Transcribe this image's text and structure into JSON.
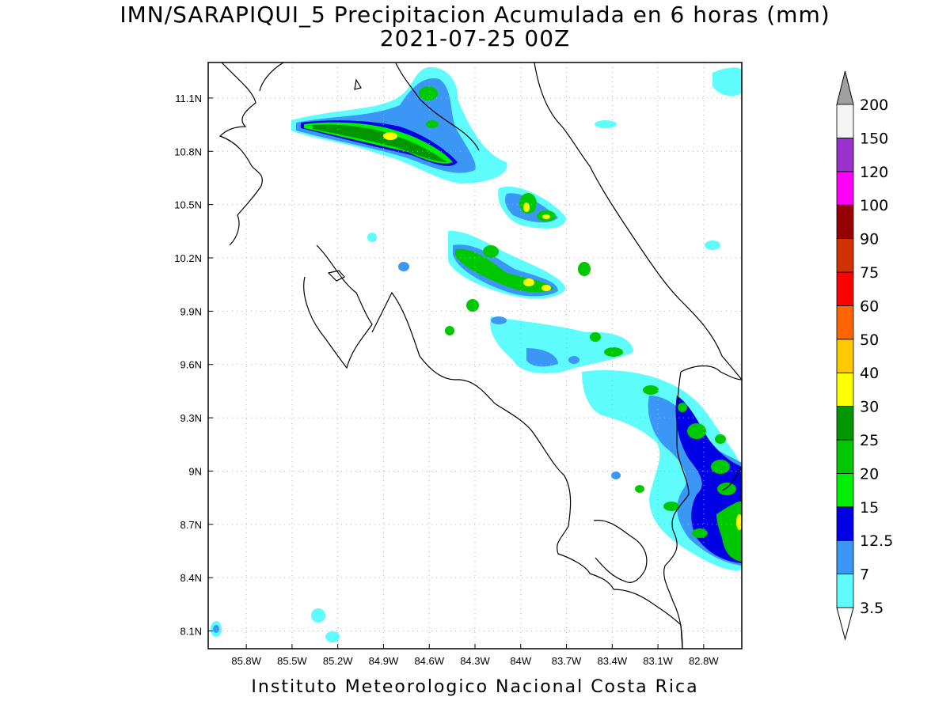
{
  "title_line1": "IMN/SARAPIQUI_5 Precipitacion Acumulada en 6 horas (mm)",
  "title_line2": "2021-07-25 00Z",
  "footer": "Instituto Meteorologico Nacional Costa Rica",
  "map": {
    "lon_range": [
      -86.05,
      -82.55
    ],
    "lat_range": [
      8.0,
      11.3
    ],
    "lon_ticks": [
      "85.8W",
      "85.5W",
      "85.2W",
      "84.9W",
      "84.6W",
      "84.3W",
      "84W",
      "83.7W",
      "83.4W",
      "83.1W",
      "82.8W"
    ],
    "lat_ticks": [
      "11.1N",
      "10.8N",
      "10.5N",
      "10.2N",
      "9.9N",
      "9.6N",
      "9.3N",
      "9N",
      "8.7N",
      "8.4N",
      "8.1N"
    ],
    "grid": "dotted"
  },
  "colorbar": {
    "labels": [
      "3.5",
      "7",
      "12.5",
      "15",
      "20",
      "25",
      "30",
      "40",
      "50",
      "60",
      "75",
      "90",
      "100",
      "120",
      "150",
      "200"
    ],
    "colors": [
      "#5efcfc",
      "#3c96f5",
      "#0000e6",
      "#00f000",
      "#00c800",
      "#009600",
      "#ffff00",
      "#ffc800",
      "#ff6400",
      "#ff0000",
      "#d23200",
      "#960000",
      "#ff00ff",
      "#9b32cd",
      "#f5f5f5",
      "#a0a0a0"
    ]
  }
}
